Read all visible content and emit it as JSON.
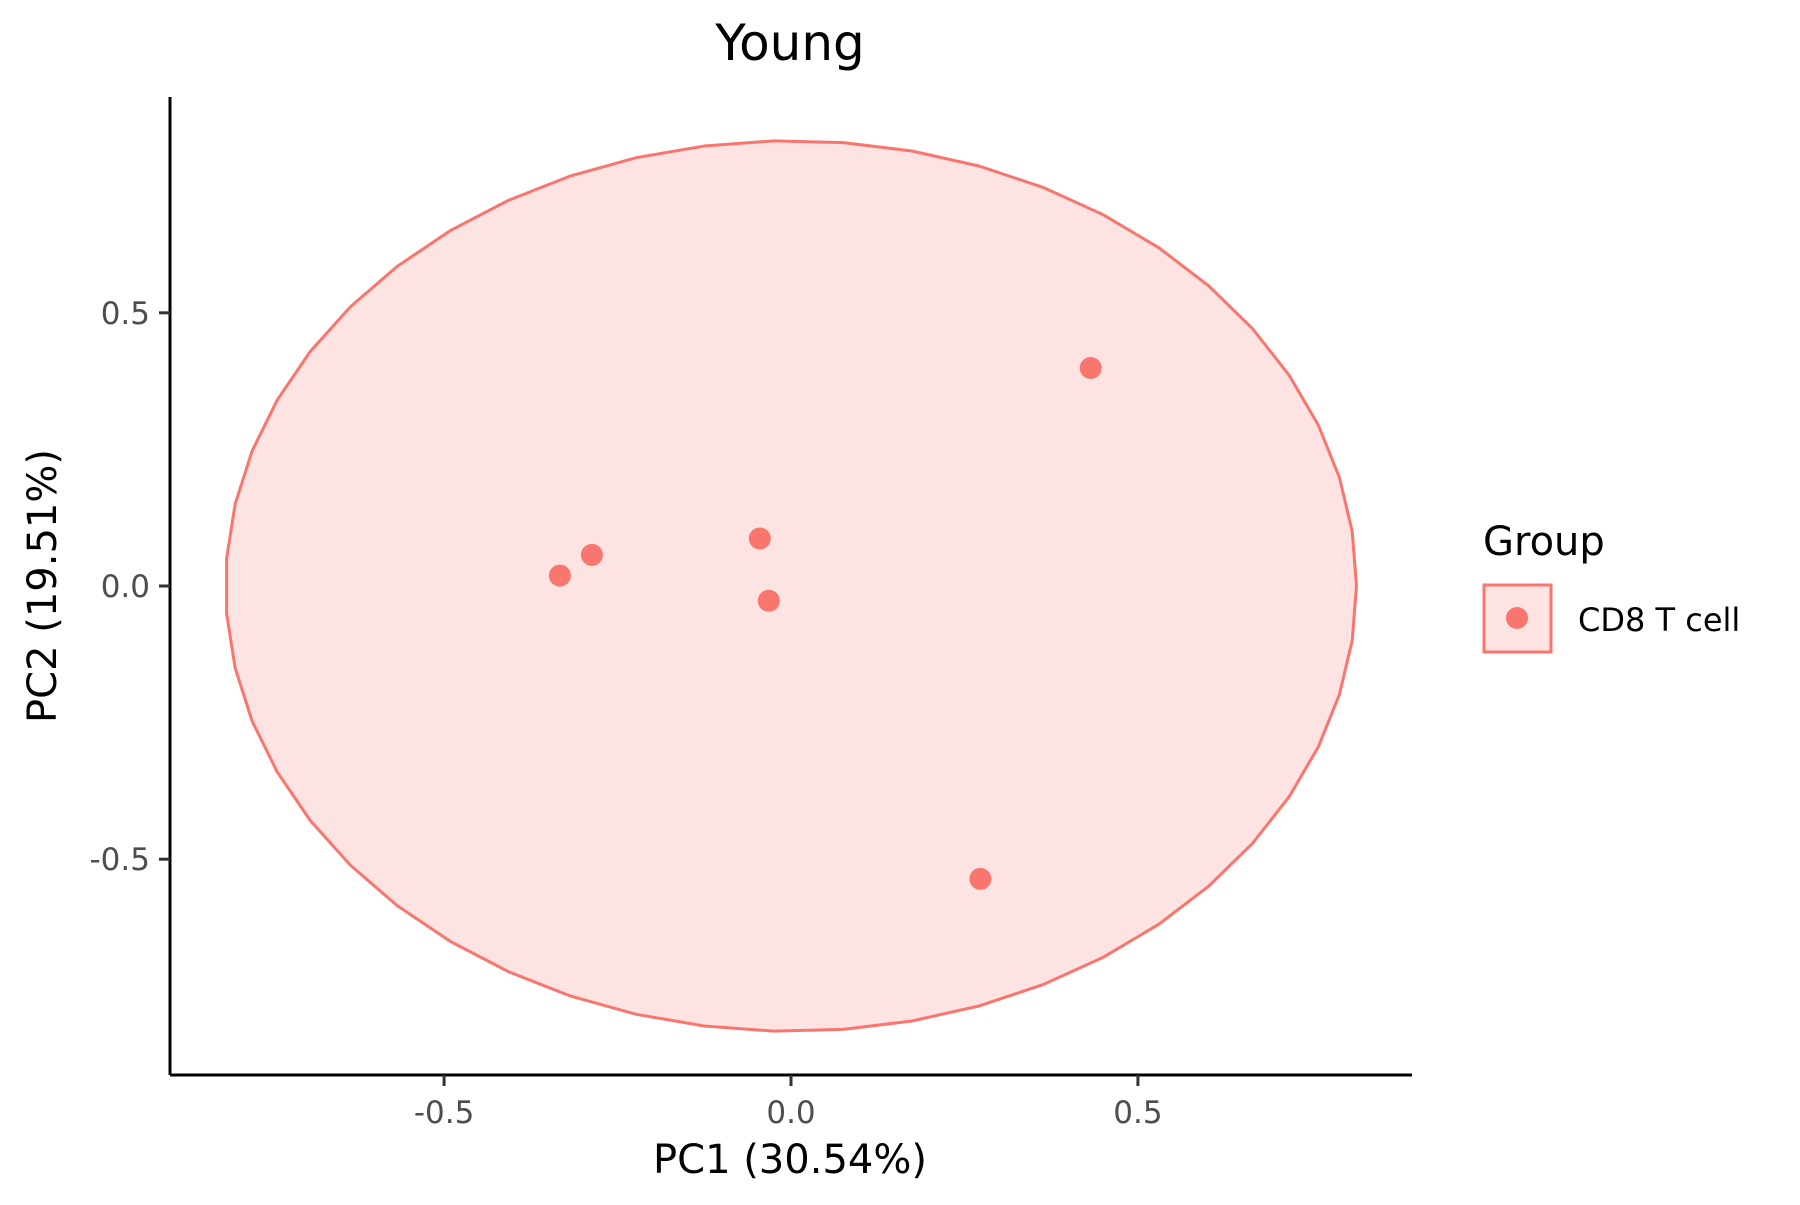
{
  "chart_data": {
    "type": "scatter",
    "title": "Young",
    "xlabel": "PC1 (30.54%)",
    "ylabel": "PC2 (19.51%)",
    "xlim": [
      -0.895,
      0.895
    ],
    "ylim": [
      -0.895,
      0.895
    ],
    "xticks": [
      -0.5,
      0.0,
      0.5
    ],
    "xtick_labels": [
      "-0.5",
      "0.0",
      "0.5"
    ],
    "yticks": [
      -0.5,
      0.0,
      0.5
    ],
    "ytick_labels": [
      "-0.5",
      "0.0",
      "0.5"
    ],
    "grid": false,
    "legend": {
      "title": "Group",
      "position": "right"
    },
    "series": [
      {
        "name": "CD8 T cell",
        "color": "#F8766D",
        "fill": "#FDE3E2",
        "points": [
          {
            "x": 0.432,
            "y": 0.399
          },
          {
            "x": -0.045,
            "y": 0.087
          },
          {
            "x": -0.287,
            "y": 0.057
          },
          {
            "x": -0.333,
            "y": 0.019
          },
          {
            "x": -0.032,
            "y": -0.027
          },
          {
            "x": 0.273,
            "y": -0.536
          }
        ],
        "ellipse": {
          "center": [
            0.0,
            0.0
          ],
          "rx": 0.815,
          "ry": 0.815
        }
      }
    ]
  }
}
